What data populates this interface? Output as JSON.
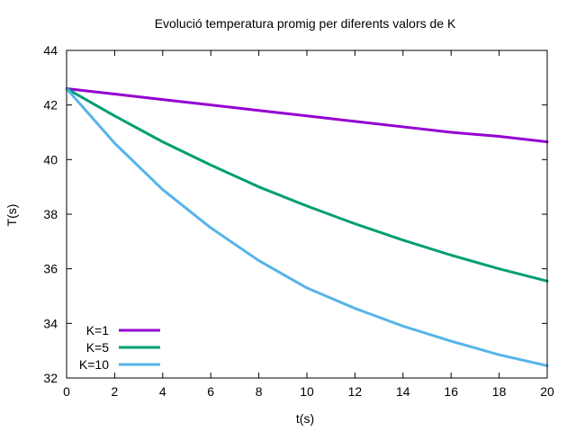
{
  "chart_data": {
    "type": "line",
    "title": "Evolució temperatura promig per diferents valors de K",
    "xlabel": "t(s)",
    "ylabel": "T(s)",
    "xlim": [
      0,
      20
    ],
    "ylim": [
      32,
      44
    ],
    "x_ticks": [
      0,
      2,
      4,
      6,
      8,
      10,
      12,
      14,
      16,
      18,
      20
    ],
    "y_ticks": [
      32,
      34,
      36,
      38,
      40,
      42,
      44
    ],
    "grid": false,
    "legend_position": "bottom-left",
    "x": [
      0,
      2,
      4,
      6,
      8,
      10,
      12,
      14,
      16,
      18,
      20
    ],
    "series": [
      {
        "name": "K=1",
        "color": "#9400d3",
        "values": [
          42.6,
          42.4,
          42.2,
          42.0,
          41.8,
          41.6,
          41.4,
          41.2,
          41.0,
          40.85,
          40.65
        ]
      },
      {
        "name": "K=5",
        "color": "#009e73",
        "values": [
          42.6,
          41.6,
          40.65,
          39.8,
          39.0,
          38.3,
          37.65,
          37.05,
          36.5,
          36.0,
          35.55
        ]
      },
      {
        "name": "K=10",
        "color": "#56b4e9",
        "values": [
          42.6,
          40.6,
          38.9,
          37.5,
          36.3,
          35.3,
          34.55,
          33.9,
          33.35,
          32.85,
          32.45
        ]
      }
    ]
  }
}
